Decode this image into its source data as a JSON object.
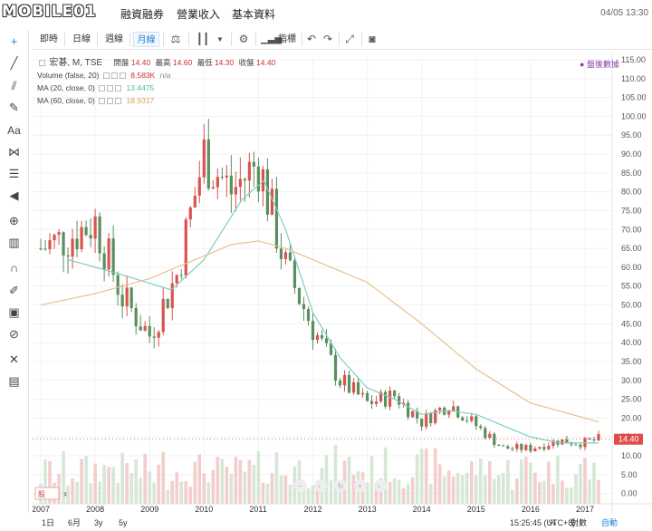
{
  "nav": {
    "logo": "MOBILE01",
    "links": [
      "融資融券",
      "營業收入",
      "基本資料"
    ],
    "date": "04/05 13:30"
  },
  "toolbar": {
    "periods": [
      "即時",
      "日線",
      "週線",
      "月線"
    ],
    "active_period": "月線",
    "indicators_label": "指標"
  },
  "legend": {
    "symbol": "宏碁, M, TSE",
    "ohlc": [
      {
        "label": "開盤",
        "value": "14.40"
      },
      {
        "label": "最高",
        "value": "14.60"
      },
      {
        "label": "最低",
        "value": "14.30"
      },
      {
        "label": "收盤",
        "value": "14.40"
      }
    ],
    "volume": {
      "name": "Volume (false, 20)",
      "value": "8.583K",
      "value2": "n/a"
    },
    "ma20": {
      "name": "MA (20, close, 0)",
      "value": "13.4475"
    },
    "ma60": {
      "name": "MA (60, close, 0)",
      "value": "18.9317"
    },
    "status": "盤後數據"
  },
  "chart_data": {
    "type": "candlestick",
    "x_labels": [
      "2007",
      "2008",
      "2009",
      "2010",
      "2011",
      "2012",
      "2013",
      "2014",
      "2015",
      "2016",
      "2017"
    ],
    "y_ticks": [
      115,
      110,
      105,
      100,
      95,
      90,
      85,
      80,
      75,
      70,
      65,
      60,
      55,
      50,
      45,
      40,
      35,
      30,
      25,
      20,
      15,
      10,
      5,
      0
    ],
    "ylim": [
      -2,
      115
    ],
    "last_price_label": "14.40",
    "series": [
      {
        "name": "price_close",
        "x": [
          2007.0,
          2007.5,
          2008.0,
          2008.5,
          2009.0,
          2009.5,
          2010.0,
          2010.5,
          2011.0,
          2011.5,
          2012.0,
          2012.5,
          2013.0,
          2013.5,
          2014.0,
          2014.5,
          2015.0,
          2015.5,
          2016.0,
          2016.5,
          2017.0,
          2017.25
        ],
        "values": [
          65,
          68,
          72,
          52,
          42,
          58,
          90,
          80,
          88,
          60,
          44,
          30,
          24,
          26,
          19,
          24,
          18,
          12,
          12,
          14,
          13.5,
          14.4
        ]
      },
      {
        "name": "MA (20, close, 0)",
        "x": [
          2007.5,
          2008.5,
          2009.4,
          2010.0,
          2010.7,
          2011.1,
          2011.5,
          2012.0,
          2012.5,
          2013.0,
          2013.5,
          2014.0,
          2014.5,
          2015.0,
          2015.5,
          2016.0,
          2016.5,
          2017.25
        ],
        "values": [
          62,
          58,
          54,
          62,
          78,
          83,
          70,
          48,
          36,
          28,
          25,
          21,
          22,
          21,
          18,
          15,
          13.5,
          13.4
        ]
      },
      {
        "name": "MA (60, close, 0)",
        "x": [
          2007.0,
          2008.0,
          2009.0,
          2010.0,
          2010.5,
          2011.0,
          2011.5,
          2012.0,
          2013.0,
          2014.0,
          2015.0,
          2016.0,
          2017.25
        ],
        "values": [
          50,
          53,
          57,
          63,
          66,
          67,
          65,
          62,
          56,
          45,
          33,
          24,
          19
        ]
      }
    ]
  },
  "bottom": {
    "ranges": [
      "1日",
      "6月",
      "3y",
      "5y"
    ],
    "time": "15:25:45 (UTC+8)",
    "percent": "%",
    "log": "對數",
    "auto": "自動"
  },
  "colors": {
    "up": "#d9534f",
    "down": "#5a8f5e",
    "ma20": "#7ccfc0",
    "ma60": "#e8c08a",
    "accent": "#2a7fd4",
    "price_tag": "#e04b4b"
  }
}
